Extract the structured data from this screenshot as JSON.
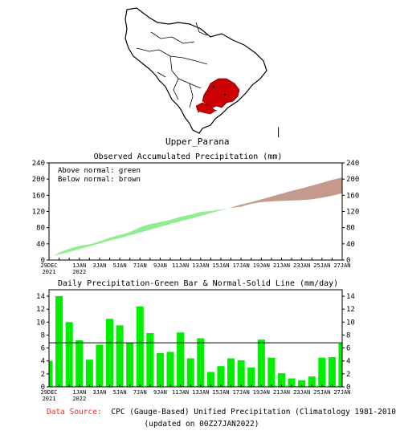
{
  "map": {
    "region_label": "Upper_Parana",
    "region_color": "#cc0000",
    "cursor_mark": "|"
  },
  "chart_data": [
    {
      "type": "area",
      "title": "Observed Accumulated Precipitation (mm)",
      "legend_lines": [
        "Above normal: green",
        "Below normal: brown"
      ],
      "ylim": [
        0,
        240
      ],
      "yticks": [
        0,
        40,
        80,
        120,
        160,
        200,
        240
      ],
      "x_tick_labels": [
        {
          "day": 0,
          "label": "29DEC",
          "sub": "2021"
        },
        {
          "day": 3,
          "label": "1JAN",
          "sub": "2022"
        },
        {
          "day": 5,
          "label": "3JAN",
          "sub": ""
        },
        {
          "day": 7,
          "label": "5JAN",
          "sub": ""
        },
        {
          "day": 9,
          "label": "7JAN",
          "sub": ""
        },
        {
          "day": 11,
          "label": "9JAN",
          "sub": ""
        },
        {
          "day": 13,
          "label": "11JAN",
          "sub": ""
        },
        {
          "day": 15,
          "label": "13JAN",
          "sub": ""
        },
        {
          "day": 17,
          "label": "15JAN",
          "sub": ""
        },
        {
          "day": 19,
          "label": "17JAN",
          "sub": ""
        },
        {
          "day": 21,
          "label": "19JAN",
          "sub": ""
        },
        {
          "day": 23,
          "label": "21JAN",
          "sub": ""
        },
        {
          "day": 25,
          "label": "23JAN",
          "sub": ""
        },
        {
          "day": 27,
          "label": "25JAN",
          "sub": ""
        },
        {
          "day": 29,
          "label": "27JAN",
          "sub": ""
        }
      ],
      "days": [
        0,
        1,
        2,
        3,
        4,
        5,
        6,
        7,
        8,
        9,
        10,
        11,
        12,
        13,
        14,
        15,
        16,
        17,
        18,
        19,
        20,
        21,
        22,
        23,
        24,
        25,
        26,
        27,
        28,
        29
      ],
      "observed": [
        4,
        18,
        28,
        35,
        39,
        46,
        55,
        62,
        69,
        81,
        89,
        94,
        99,
        107,
        112,
        119,
        121,
        125,
        129,
        132,
        139,
        143,
        145,
        146,
        147,
        148,
        150,
        154,
        159,
        165
      ],
      "normal": [
        7,
        14,
        20,
        27,
        34,
        41,
        48,
        54,
        61,
        68,
        75,
        82,
        89,
        96,
        102,
        109,
        116,
        123,
        130,
        137,
        143,
        150,
        157,
        164,
        171,
        177,
        184,
        191,
        198,
        204
      ],
      "colors": {
        "above": "#90ee90",
        "below": "#c49a8c"
      }
    },
    {
      "type": "bar",
      "title": "Daily Precipitation-Green Bar & Normal-Solid Line (mm/day)",
      "ylim": [
        0,
        15
      ],
      "yticks": [
        0,
        2,
        4,
        6,
        8,
        10,
        12,
        14
      ],
      "days": [
        0,
        1,
        2,
        3,
        4,
        5,
        6,
        7,
        8,
        9,
        10,
        11,
        12,
        13,
        14,
        15,
        16,
        17,
        18,
        19,
        20,
        21,
        22,
        23,
        24,
        25,
        26,
        27,
        28,
        29
      ],
      "values": [
        4.0,
        14.0,
        10.0,
        7.2,
        4.2,
        6.5,
        10.5,
        9.5,
        6.8,
        12.4,
        8.3,
        5.2,
        5.4,
        8.4,
        4.4,
        7.5,
        2.3,
        3.2,
        4.4,
        4.1,
        3.0,
        7.3,
        4.5,
        2.1,
        1.3,
        1.0,
        1.6,
        4.5,
        4.6,
        6.7
      ],
      "normal": 6.8,
      "colors": {
        "bar": "#00ee00",
        "normal_line": "#000000"
      }
    }
  ],
  "footer": {
    "source_prefix": "Data Source:",
    "source_text": "CPC (Gauge-Based) Unified Precipitation (Climatology 1981-2010)",
    "updated": "(updated on 00Z27JAN2022)",
    "prefix_color": "#ff2020"
  }
}
